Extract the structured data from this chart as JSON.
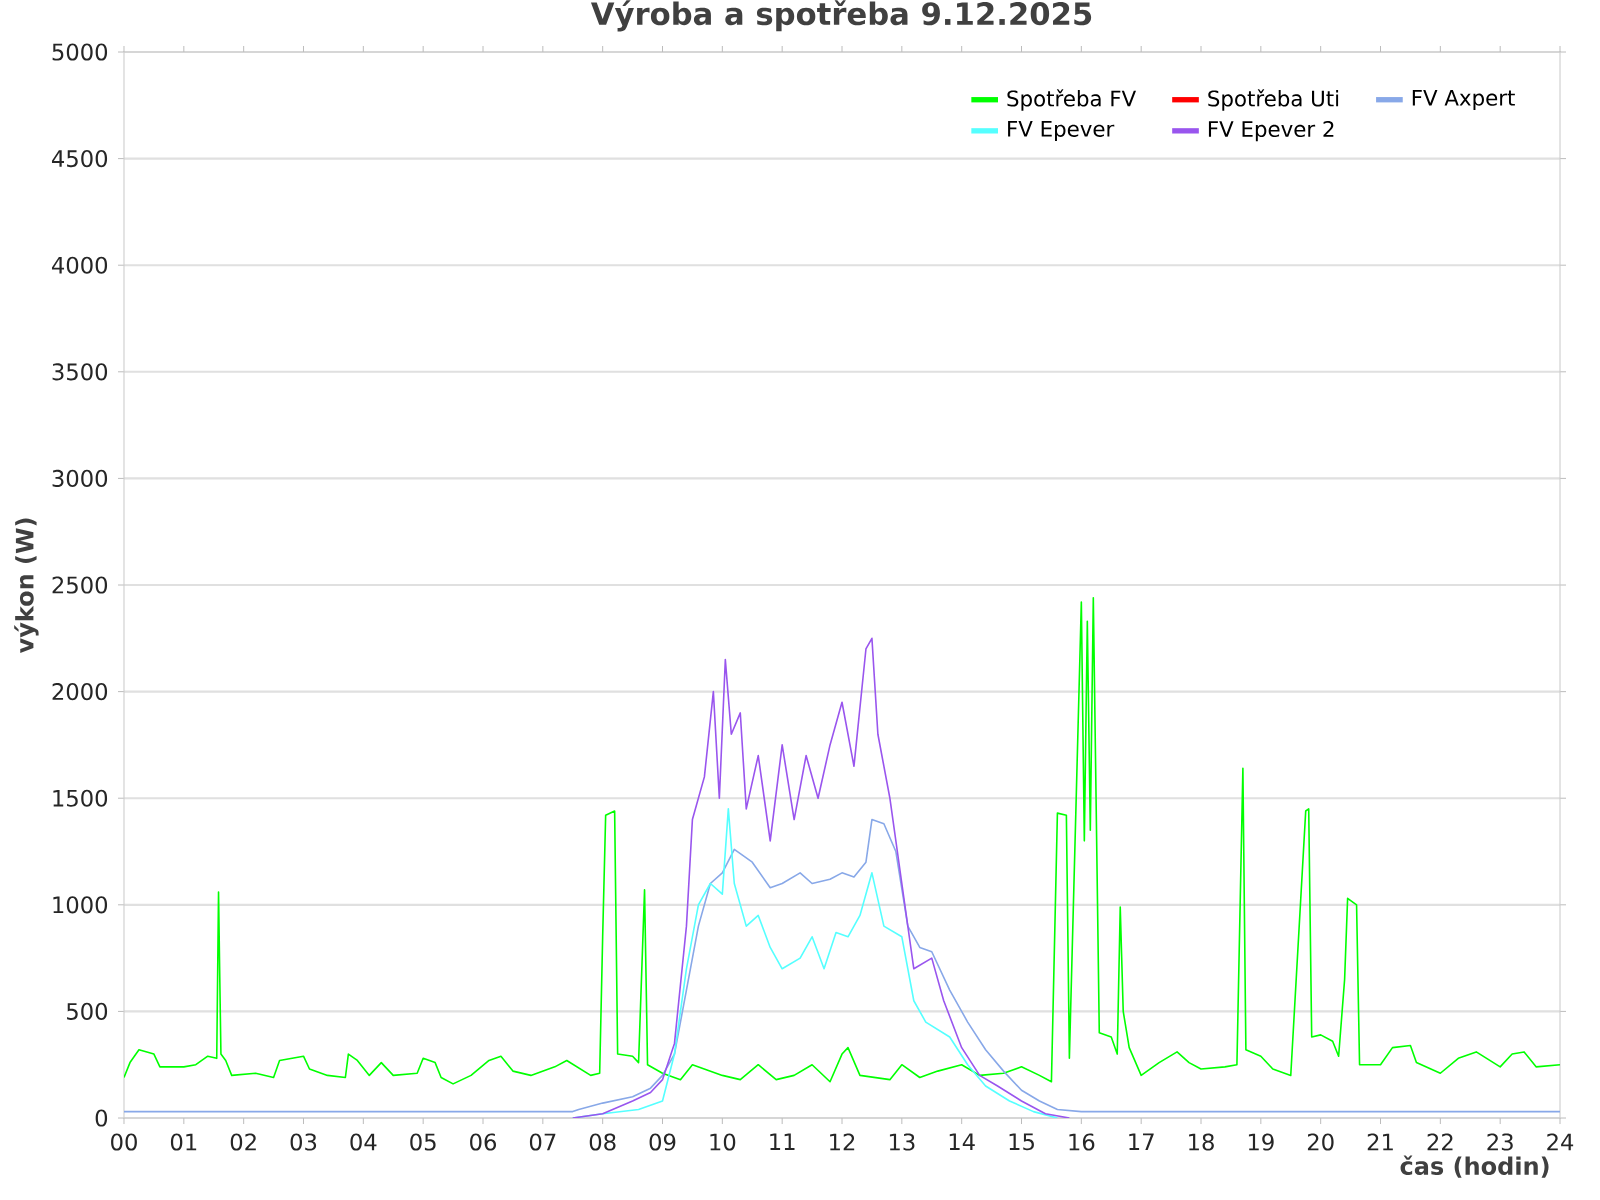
{
  "chart_data": {
    "type": "line",
    "title": "Výroba a spotřeba 9.12.2025",
    "xlabel": "čas (hodin)",
    "ylabel": "výkon (W)",
    "xlim": [
      0,
      24
    ],
    "ylim": [
      0,
      5000
    ],
    "xticks": [
      {
        "value": 0,
        "label": "00"
      },
      {
        "value": 1,
        "label": "01"
      },
      {
        "value": 2,
        "label": "02"
      },
      {
        "value": 3,
        "label": "03"
      },
      {
        "value": 4,
        "label": "04"
      },
      {
        "value": 5,
        "label": "05"
      },
      {
        "value": 6,
        "label": "06"
      },
      {
        "value": 7,
        "label": "07"
      },
      {
        "value": 8,
        "label": "08"
      },
      {
        "value": 9,
        "label": "09"
      },
      {
        "value": 10,
        "label": "10"
      },
      {
        "value": 11,
        "label": "11"
      },
      {
        "value": 12,
        "label": "12"
      },
      {
        "value": 13,
        "label": "13"
      },
      {
        "value": 14,
        "label": "14"
      },
      {
        "value": 15,
        "label": "15"
      },
      {
        "value": 16,
        "label": "16"
      },
      {
        "value": 17,
        "label": "17"
      },
      {
        "value": 18,
        "label": "18"
      },
      {
        "value": 19,
        "label": "19"
      },
      {
        "value": 20,
        "label": "20"
      },
      {
        "value": 21,
        "label": "21"
      },
      {
        "value": 22,
        "label": "22"
      },
      {
        "value": 23,
        "label": "23"
      },
      {
        "value": 24,
        "label": "24"
      }
    ],
    "yticks": [
      0,
      500,
      1000,
      1500,
      2000,
      2500,
      3000,
      3500,
      4000,
      4500,
      5000
    ],
    "grid": "y",
    "legend": "top right",
    "series": [
      {
        "name": "Spotřeba FV",
        "color": "#00ff00",
        "x": [
          0,
          0.1,
          0.25,
          0.5,
          0.6,
          1.0,
          1.2,
          1.4,
          1.55,
          1.58,
          1.6,
          1.62,
          1.7,
          1.8,
          2.2,
          2.5,
          2.6,
          3.0,
          3.1,
          3.4,
          3.7,
          3.75,
          3.9,
          4.1,
          4.3,
          4.5,
          4.9,
          5.0,
          5.2,
          5.3,
          5.5,
          5.8,
          6.1,
          6.3,
          6.5,
          6.8,
          7.2,
          7.4,
          7.8,
          7.95,
          8.0,
          8.05,
          8.2,
          8.25,
          8.5,
          8.6,
          8.7,
          8.75,
          9.0,
          9.3,
          9.5,
          10.0,
          10.3,
          10.6,
          10.9,
          11.2,
          11.5,
          11.8,
          12.0,
          12.1,
          12.3,
          12.8,
          13.0,
          13.3,
          13.6,
          14.0,
          14.3,
          14.7,
          15.0,
          15.3,
          15.5,
          15.55,
          15.6,
          15.75,
          15.8,
          16.0,
          16.05,
          16.1,
          16.15,
          16.2,
          16.3,
          16.5,
          16.6,
          16.65,
          16.7,
          16.8,
          17.0,
          17.3,
          17.6,
          17.8,
          18.0,
          18.4,
          18.6,
          18.7,
          18.75,
          19.0,
          19.2,
          19.5,
          19.75,
          19.8,
          19.85,
          20.0,
          20.2,
          20.3,
          20.4,
          20.45,
          20.6,
          20.65,
          21.0,
          21.2,
          21.5,
          21.6,
          22.0,
          22.3,
          22.6,
          23.0,
          23.2,
          23.4,
          23.6,
          24.0
        ],
        "values": [
          190,
          260,
          320,
          300,
          240,
          240,
          250,
          290,
          280,
          1060,
          670,
          300,
          270,
          200,
          210,
          190,
          270,
          290,
          230,
          200,
          190,
          300,
          270,
          200,
          260,
          200,
          210,
          280,
          260,
          190,
          160,
          200,
          270,
          290,
          220,
          200,
          240,
          270,
          200,
          210,
          850,
          1420,
          1440,
          300,
          290,
          260,
          1070,
          250,
          210,
          180,
          250,
          200,
          180,
          250,
          180,
          200,
          250,
          170,
          300,
          330,
          200,
          180,
          250,
          190,
          220,
          250,
          200,
          210,
          240,
          200,
          170,
          800,
          1430,
          1420,
          280,
          2420,
          1300,
          2330,
          1350,
          2440,
          400,
          380,
          300,
          990,
          500,
          330,
          200,
          260,
          310,
          260,
          230,
          240,
          250,
          1640,
          320,
          290,
          230,
          200,
          1440,
          1450,
          380,
          390,
          360,
          290,
          650,
          1030,
          1000,
          250,
          250,
          330,
          340,
          260,
          210,
          280,
          310,
          240,
          300,
          310,
          240,
          250
        ]
      },
      {
        "name": "Spotřeba Uti",
        "color": "#ff0000"
      },
      {
        "name": "FV Axpert",
        "color": "#88a8e8",
        "x": [
          0,
          7.5,
          7.6,
          8.0,
          8.5,
          8.8,
          9.0,
          9.2,
          9.4,
          9.6,
          9.8,
          10.0,
          10.2,
          10.5,
          10.8,
          11.0,
          11.3,
          11.5,
          11.8,
          12.0,
          12.2,
          12.4,
          12.5,
          12.7,
          12.9,
          13.1,
          13.3,
          13.5,
          13.8,
          14.1,
          14.4,
          14.7,
          15.0,
          15.3,
          15.6,
          16.0,
          24.0
        ],
        "values": [
          30,
          30,
          40,
          70,
          100,
          140,
          200,
          300,
          600,
          900,
          1100,
          1150,
          1260,
          1200,
          1080,
          1100,
          1150,
          1100,
          1120,
          1150,
          1130,
          1200,
          1400,
          1380,
          1250,
          900,
          800,
          780,
          600,
          450,
          320,
          220,
          130,
          80,
          40,
          30,
          30
        ]
      },
      {
        "name": "FV Epever",
        "color": "#55ffff",
        "x": [
          7.5,
          8.0,
          8.6,
          9.0,
          9.2,
          9.4,
          9.6,
          9.8,
          10.0,
          10.1,
          10.2,
          10.4,
          10.6,
          10.8,
          11.0,
          11.3,
          11.5,
          11.7,
          11.9,
          12.1,
          12.3,
          12.5,
          12.7,
          13.0,
          13.2,
          13.4,
          13.8,
          14.1,
          14.4,
          14.8,
          15.2,
          15.6
        ],
        "values": [
          0,
          20,
          40,
          80,
          300,
          700,
          1000,
          1100,
          1050,
          1450,
          1100,
          900,
          950,
          800,
          700,
          750,
          850,
          700,
          870,
          850,
          950,
          1150,
          900,
          850,
          550,
          450,
          380,
          250,
          150,
          80,
          30,
          0
        ]
      },
      {
        "name": "FV Epever 2",
        "color": "#9955ee",
        "x": [
          7.5,
          8.0,
          8.5,
          8.8,
          9.0,
          9.2,
          9.4,
          9.5,
          9.7,
          9.85,
          9.95,
          10.05,
          10.15,
          10.3,
          10.4,
          10.6,
          10.8,
          11.0,
          11.2,
          11.4,
          11.6,
          11.8,
          12.0,
          12.2,
          12.4,
          12.5,
          12.6,
          12.8,
          13.0,
          13.2,
          13.5,
          13.7,
          14.0,
          14.3,
          14.6,
          15.0,
          15.4,
          15.8
        ],
        "values": [
          0,
          20,
          80,
          120,
          180,
          350,
          900,
          1400,
          1600,
          2000,
          1500,
          2150,
          1800,
          1900,
          1450,
          1700,
          1300,
          1750,
          1400,
          1700,
          1500,
          1750,
          1950,
          1650,
          2200,
          2250,
          1800,
          1500,
          1100,
          700,
          750,
          550,
          330,
          200,
          150,
          80,
          20,
          0
        ]
      }
    ]
  }
}
